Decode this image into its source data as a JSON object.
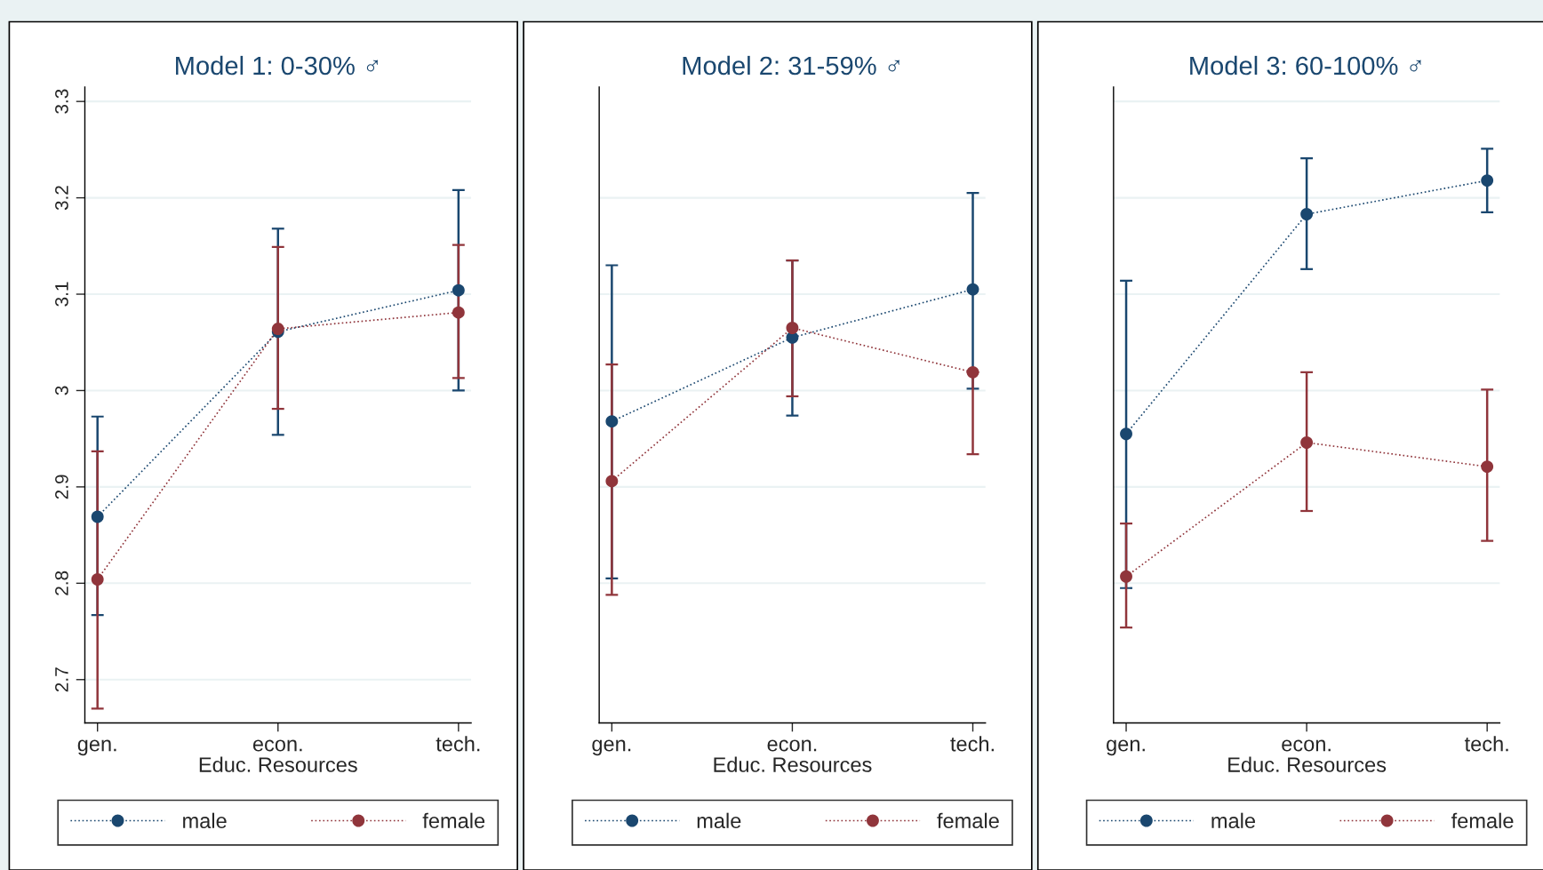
{
  "chart_data": [
    {
      "type": "line",
      "title": "Model 1: 0-30% ♂",
      "xlabel": "Educ. Resources",
      "categories": [
        "gen.",
        "econ.",
        "tech."
      ],
      "ylim": [
        2.655,
        3.315
      ],
      "yticks": [
        2.7,
        2.8,
        2.9,
        3,
        3.1,
        3.2,
        3.3
      ],
      "grid": "y",
      "legend": "bottom",
      "marker": "circle",
      "line_style": "dotted",
      "series": [
        {
          "name": "male",
          "color": "#1a476f",
          "values": [
            2.869,
            3.061,
            3.104
          ],
          "errors": [
            [
              2.767,
              2.973
            ],
            [
              2.954,
              3.168
            ],
            [
              3.0,
              3.208
            ]
          ]
        },
        {
          "name": "female",
          "color": "#90353b",
          "values": [
            2.804,
            3.064,
            3.081
          ],
          "errors": [
            [
              2.67,
              2.937
            ],
            [
              2.981,
              3.149
            ],
            [
              3.013,
              3.151
            ]
          ]
        }
      ]
    },
    {
      "type": "line",
      "title": "Model 2: 31-59% ♂",
      "xlabel": "Educ. Resources",
      "categories": [
        "gen.",
        "econ.",
        "tech."
      ],
      "ylim": [
        2.655,
        3.315
      ],
      "yticks": [
        2.8,
        2.9,
        3,
        3.1,
        3.2
      ],
      "tick_labels": "x",
      "grid": "y",
      "legend": "bottom",
      "marker": "circle",
      "line_style": "dotted",
      "series": [
        {
          "name": "male",
          "color": "#1a476f",
          "values": [
            2.968,
            3.055,
            3.105
          ],
          "errors": [
            [
              2.805,
              3.13
            ],
            [
              2.974,
              3.135
            ],
            [
              3.002,
              3.205
            ]
          ]
        },
        {
          "name": "female",
          "color": "#90353b",
          "values": [
            2.906,
            3.065,
            3.019
          ],
          "errors": [
            [
              2.788,
              3.027
            ],
            [
              2.994,
              3.135
            ],
            [
              2.934,
              3.019
            ]
          ]
        }
      ]
    },
    {
      "type": "line",
      "title": "Model 3: 60-100% ♂",
      "xlabel": "Educ. Resources",
      "categories": [
        "gen.",
        "econ.",
        "tech."
      ],
      "ylim": [
        2.655,
        3.315
      ],
      "yticks": [
        2.8,
        2.9,
        3,
        3.1,
        3.2,
        3.3
      ],
      "tick_labels": "x",
      "grid": "y",
      "legend": "bottom",
      "marker": "circle",
      "line_style": "dotted",
      "series": [
        {
          "name": "male",
          "color": "#1a476f",
          "values": [
            2.955,
            3.183,
            3.218
          ],
          "errors": [
            [
              2.795,
              3.114
            ],
            [
              3.126,
              3.241
            ],
            [
              3.185,
              3.251
            ]
          ]
        },
        {
          "name": "female",
          "color": "#90353b",
          "values": [
            2.807,
            2.946,
            2.921
          ],
          "errors": [
            [
              2.754,
              2.862
            ],
            [
              2.875,
              3.019
            ],
            [
              2.844,
              3.001
            ]
          ]
        }
      ]
    }
  ]
}
